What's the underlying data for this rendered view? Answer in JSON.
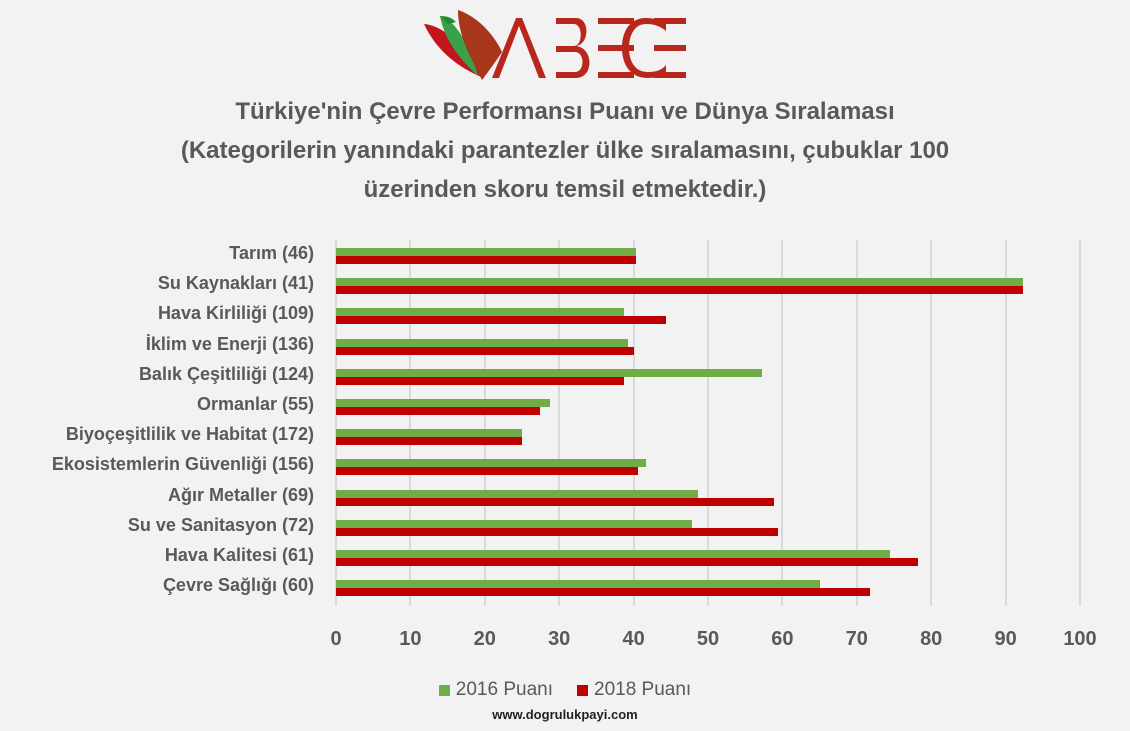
{
  "logo": {
    "text": "ABECE",
    "colors": {
      "red": "#c0161c",
      "green": "#2a9a3e",
      "brown": "#a8361a"
    }
  },
  "title": {
    "line1": "Türkiye'nin Çevre Performansı Puanı ve Dünya Sıralaması",
    "line2": "(Kategorilerin yanındaki parantezler ülke sıralamasını, çubuklar 100",
    "line3": "üzerinden skoru temsil etmektedir.)"
  },
  "legend": {
    "items": [
      {
        "label": "2016 Puanı",
        "color": "#70ad47"
      },
      {
        "label": "2018 Puanı",
        "color": "#c00000"
      }
    ]
  },
  "source": "www.dogrulukpayi.com",
  "chart_data": {
    "type": "bar",
    "orientation": "horizontal",
    "title": "Türkiye'nin Çevre Performansı Puanı ve Dünya Sıralaması (Kategorilerin yanındaki parantezler ülke sıralamasını, çubuklar 100 üzerinden skoru temsil etmektedir.)",
    "xlabel": "",
    "ylabel": "",
    "xlim": [
      0,
      100
    ],
    "x_ticks": [
      "0",
      "10",
      "20",
      "30",
      "40",
      "50",
      "60",
      "70",
      "80",
      "90",
      "100"
    ],
    "grid": true,
    "legend_position": "bottom",
    "categories": [
      "Tarım (46)",
      "Su Kaynakları (41)",
      "Hava Kirliliği (109)",
      "İklim ve Enerji (136)",
      "Balık Çeşitliliği (124)",
      "Ormanlar (55)",
      "Biyoçeşitlilik ve Habitat (172)",
      "Ekosistemlerin Güvenliği (156)",
      "Ağır Metaller (69)",
      "Su ve Sanitasyon (72)",
      "Hava Kalitesi (61)",
      "Çevre Sağlığı (60)"
    ],
    "series": [
      {
        "name": "2016 Puanı",
        "color": "#70ad47",
        "values": [
          40.3,
          92.4,
          38.7,
          39.2,
          57.2,
          28.8,
          25.0,
          41.7,
          48.7,
          47.8,
          74.5,
          65.1
        ]
      },
      {
        "name": "2018 Puanı",
        "color": "#c00000",
        "values": [
          40.3,
          92.4,
          44.4,
          40.1,
          38.7,
          27.4,
          25.0,
          40.6,
          58.9,
          59.4,
          78.2,
          71.8
        ]
      }
    ]
  }
}
